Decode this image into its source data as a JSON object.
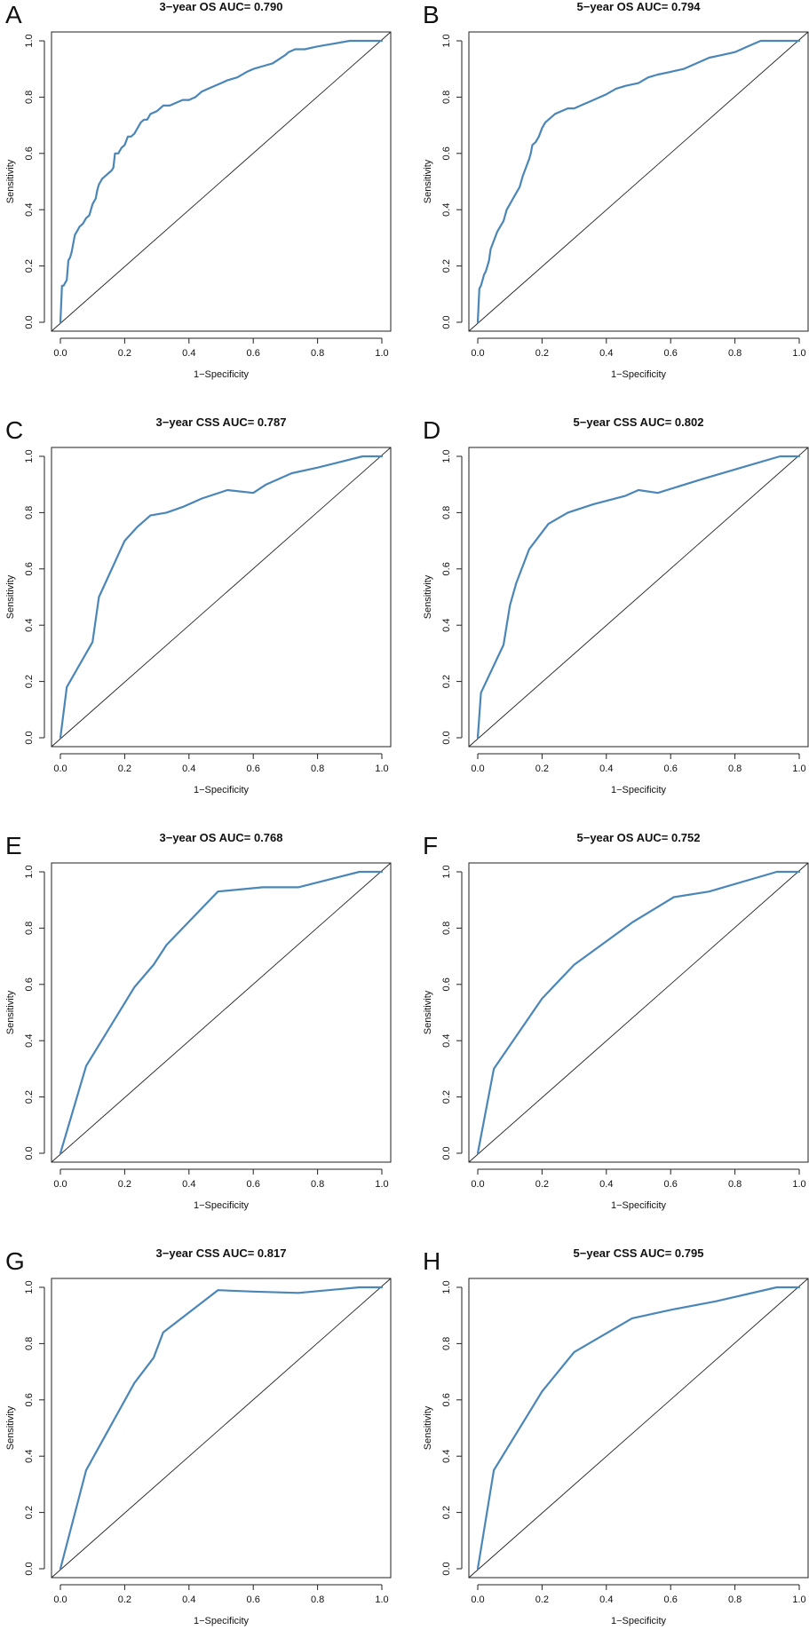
{
  "colors": {
    "curve": "#4a86b8",
    "axis": "#222222",
    "background": "#ffffff"
  },
  "chart_data": [
    {
      "panel_label": "A",
      "type": "line",
      "title": "3−year OS AUC= 0.790",
      "xlabel": "1−Specificity",
      "ylabel": "Sensitivity",
      "xlim": [
        0,
        1
      ],
      "ylim": [
        0,
        1
      ],
      "xticks": [
        "0.0",
        "0.2",
        "0.4",
        "0.6",
        "0.8",
        "1.0"
      ],
      "yticks": [
        "0.0",
        "0.2",
        "0.4",
        "0.6",
        "0.8",
        "1.0"
      ],
      "reference_line": "diagonal",
      "x": [
        0,
        0.005,
        0.01,
        0.015,
        0.02,
        0.025,
        0.03,
        0.035,
        0.04,
        0.045,
        0.05,
        0.055,
        0.06,
        0.07,
        0.08,
        0.09,
        0.1,
        0.11,
        0.115,
        0.12,
        0.125,
        0.13,
        0.14,
        0.15,
        0.16,
        0.165,
        0.17,
        0.18,
        0.19,
        0.2,
        0.21,
        0.22,
        0.23,
        0.24,
        0.25,
        0.26,
        0.27,
        0.28,
        0.3,
        0.32,
        0.34,
        0.36,
        0.38,
        0.4,
        0.42,
        0.44,
        0.46,
        0.48,
        0.5,
        0.52,
        0.55,
        0.58,
        0.6,
        0.63,
        0.66,
        0.7,
        0.71,
        0.73,
        0.76,
        0.8,
        0.85,
        0.9,
        0.94,
        0.97,
        1.0
      ],
      "y": [
        0,
        0.13,
        0.13,
        0.14,
        0.15,
        0.22,
        0.23,
        0.25,
        0.28,
        0.31,
        0.32,
        0.33,
        0.34,
        0.35,
        0.37,
        0.38,
        0.42,
        0.44,
        0.47,
        0.49,
        0.5,
        0.51,
        0.52,
        0.53,
        0.54,
        0.55,
        0.6,
        0.6,
        0.62,
        0.63,
        0.66,
        0.66,
        0.67,
        0.69,
        0.71,
        0.72,
        0.72,
        0.74,
        0.75,
        0.77,
        0.77,
        0.78,
        0.79,
        0.79,
        0.8,
        0.82,
        0.83,
        0.84,
        0.85,
        0.86,
        0.87,
        0.89,
        0.9,
        0.91,
        0.92,
        0.95,
        0.96,
        0.97,
        0.97,
        0.98,
        0.99,
        1.0,
        1.0,
        1.0,
        1.0
      ]
    },
    {
      "panel_label": "B",
      "type": "line",
      "title": "5−year OS AUC= 0.794",
      "xlabel": "1−Specificity",
      "ylabel": "Sensitivity",
      "xlim": [
        0,
        1
      ],
      "ylim": [
        0,
        1
      ],
      "xticks": [
        "0.0",
        "0.2",
        "0.4",
        "0.6",
        "0.8",
        "1.0"
      ],
      "yticks": [
        "0.0",
        "0.2",
        "0.4",
        "0.6",
        "0.8",
        "1.0"
      ],
      "reference_line": "diagonal",
      "x": [
        0,
        0.005,
        0.01,
        0.015,
        0.02,
        0.025,
        0.03,
        0.035,
        0.04,
        0.05,
        0.06,
        0.07,
        0.08,
        0.09,
        0.1,
        0.11,
        0.12,
        0.13,
        0.14,
        0.15,
        0.16,
        0.165,
        0.17,
        0.18,
        0.19,
        0.2,
        0.21,
        0.22,
        0.24,
        0.26,
        0.28,
        0.3,
        0.32,
        0.34,
        0.36,
        0.38,
        0.4,
        0.43,
        0.46,
        0.5,
        0.53,
        0.56,
        0.6,
        0.64,
        0.68,
        0.72,
        0.76,
        0.8,
        0.84,
        0.88,
        0.92,
        0.96,
        1.0
      ],
      "y": [
        0,
        0.12,
        0.13,
        0.15,
        0.17,
        0.18,
        0.2,
        0.22,
        0.26,
        0.29,
        0.32,
        0.34,
        0.36,
        0.4,
        0.42,
        0.44,
        0.46,
        0.48,
        0.52,
        0.55,
        0.58,
        0.6,
        0.63,
        0.64,
        0.66,
        0.69,
        0.71,
        0.72,
        0.74,
        0.75,
        0.76,
        0.76,
        0.77,
        0.78,
        0.79,
        0.8,
        0.81,
        0.83,
        0.84,
        0.85,
        0.87,
        0.88,
        0.89,
        0.9,
        0.92,
        0.94,
        0.95,
        0.96,
        0.98,
        1.0,
        1.0,
        1.0,
        1.0
      ]
    },
    {
      "panel_label": "C",
      "type": "line",
      "title": "3−year CSS AUC= 0.787",
      "xlabel": "1−Specificity",
      "ylabel": "Sensitivity",
      "xlim": [
        0,
        1
      ],
      "ylim": [
        0,
        1
      ],
      "xticks": [
        "0.0",
        "0.2",
        "0.4",
        "0.6",
        "0.8",
        "1.0"
      ],
      "yticks": [
        "0.0",
        "0.2",
        "0.4",
        "0.6",
        "0.8",
        "1.0"
      ],
      "reference_line": "diagonal",
      "x": [
        0,
        0.02,
        0.1,
        0.12,
        0.2,
        0.24,
        0.28,
        0.33,
        0.38,
        0.44,
        0.52,
        0.6,
        0.64,
        0.72,
        0.8,
        0.94,
        1.0
      ],
      "y": [
        0,
        0.18,
        0.34,
        0.5,
        0.7,
        0.75,
        0.79,
        0.8,
        0.82,
        0.85,
        0.88,
        0.87,
        0.9,
        0.94,
        0.96,
        1.0,
        1.0
      ]
    },
    {
      "panel_label": "D",
      "type": "line",
      "title": "5−year CSS AUC= 0.802",
      "xlabel": "1−Specificity",
      "ylabel": "Sensitivity",
      "xlim": [
        0,
        1
      ],
      "ylim": [
        0,
        1
      ],
      "xticks": [
        "0.0",
        "0.2",
        "0.4",
        "0.6",
        "0.8",
        "1.0"
      ],
      "yticks": [
        "0.0",
        "0.2",
        "0.4",
        "0.6",
        "0.8",
        "1.0"
      ],
      "reference_line": "diagonal",
      "x": [
        0,
        0.01,
        0.08,
        0.09,
        0.1,
        0.12,
        0.16,
        0.22,
        0.28,
        0.36,
        0.46,
        0.5,
        0.56,
        0.7,
        0.82,
        0.94,
        1.0
      ],
      "y": [
        0,
        0.16,
        0.33,
        0.4,
        0.47,
        0.55,
        0.67,
        0.76,
        0.8,
        0.83,
        0.86,
        0.88,
        0.87,
        0.92,
        0.96,
        1.0,
        1.0
      ]
    },
    {
      "panel_label": "E",
      "type": "line",
      "title": "3−year OS AUC= 0.768",
      "xlabel": "1−Specificity",
      "ylabel": "Sensitivity",
      "xlim": [
        0,
        1
      ],
      "ylim": [
        0,
        1
      ],
      "xticks": [
        "0.0",
        "0.2",
        "0.4",
        "0.6",
        "0.8",
        "1.0"
      ],
      "yticks": [
        "0.0",
        "0.2",
        "0.4",
        "0.6",
        "0.8",
        "1.0"
      ],
      "reference_line": "diagonal",
      "x": [
        0,
        0.08,
        0.23,
        0.29,
        0.33,
        0.49,
        0.63,
        0.74,
        0.93,
        1.0
      ],
      "y": [
        0,
        0.31,
        0.59,
        0.67,
        0.74,
        0.93,
        0.945,
        0.945,
        1.0,
        1.0
      ]
    },
    {
      "panel_label": "F",
      "type": "line",
      "title": "5−year OS AUC= 0.752",
      "xlabel": "1−Specificity",
      "ylabel": "Sensitivity",
      "xlim": [
        0,
        1
      ],
      "ylim": [
        0,
        1
      ],
      "xticks": [
        "0.0",
        "0.2",
        "0.4",
        "0.6",
        "0.8",
        "1.0"
      ],
      "yticks": [
        "0.0",
        "0.2",
        "0.4",
        "0.6",
        "0.8",
        "1.0"
      ],
      "reference_line": "diagonal",
      "x": [
        0,
        0.05,
        0.2,
        0.3,
        0.48,
        0.61,
        0.72,
        0.93,
        1.0
      ],
      "y": [
        0,
        0.3,
        0.55,
        0.67,
        0.82,
        0.91,
        0.93,
        1.0,
        1.0
      ]
    },
    {
      "panel_label": "G",
      "type": "line",
      "title": "3−year CSS AUC= 0.817",
      "xlabel": "1−Specificity",
      "ylabel": "Sensitivity",
      "xlim": [
        0,
        1
      ],
      "ylim": [
        0,
        1
      ],
      "xticks": [
        "0.0",
        "0.2",
        "0.4",
        "0.6",
        "0.8",
        "1.0"
      ],
      "yticks": [
        "0.0",
        "0.2",
        "0.4",
        "0.6",
        "0.8",
        "1.0"
      ],
      "reference_line": "diagonal",
      "x": [
        0,
        0.08,
        0.23,
        0.29,
        0.32,
        0.49,
        0.6,
        0.74,
        0.93,
        1.0
      ],
      "y": [
        0,
        0.35,
        0.66,
        0.75,
        0.84,
        0.99,
        0.985,
        0.98,
        1.0,
        1.0
      ]
    },
    {
      "panel_label": "H",
      "type": "line",
      "title": "5−year CSS AUC= 0.795",
      "xlabel": "1−Specificity",
      "ylabel": "Sensitivity",
      "xlim": [
        0,
        1
      ],
      "ylim": [
        0,
        1
      ],
      "xticks": [
        "0.0",
        "0.2",
        "0.4",
        "0.6",
        "0.8",
        "1.0"
      ],
      "yticks": [
        "0.0",
        "0.2",
        "0.4",
        "0.6",
        "0.8",
        "1.0"
      ],
      "reference_line": "diagonal",
      "x": [
        0,
        0.05,
        0.2,
        0.3,
        0.48,
        0.6,
        0.74,
        0.93,
        1.0
      ],
      "y": [
        0,
        0.35,
        0.63,
        0.77,
        0.89,
        0.92,
        0.95,
        1.0,
        1.0
      ]
    }
  ]
}
